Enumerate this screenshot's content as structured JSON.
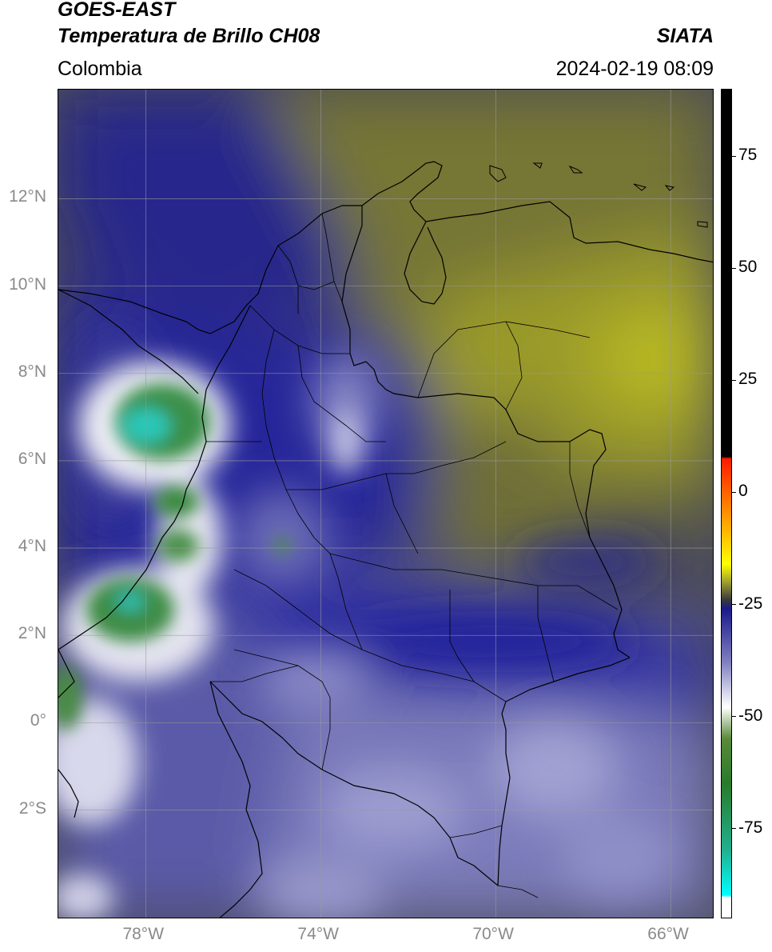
{
  "header": {
    "satellite": "GOES-EAST",
    "product": "Temperatura de Brillo CH08",
    "region": "Colombia",
    "agency": "SIATA",
    "datetime": "2024-02-19 08:09"
  },
  "map": {
    "lat_labels": [
      "12°N",
      "10°N",
      "8°N",
      "6°N",
      "4°N",
      "2°N",
      "0°",
      "2°S"
    ],
    "lon_labels": [
      "78°W",
      "74°W",
      "70°W",
      "66°W"
    ],
    "lat_range": [
      -4.5,
      14.5
    ],
    "lon_range": [
      -80,
      -65
    ],
    "gridlines": true,
    "borders": "country and department boundaries",
    "colors": {
      "cold_cloud": "#2a8a3a",
      "cyan": "#2ad6c6",
      "white": "#f4f4f8",
      "deep_blue": "#1e1e8c",
      "mid_blue": "#5a5aa8",
      "lavender": "#9a9ac8",
      "gray": "#4e4e58",
      "olive": "#8a8a30",
      "yellow": "#c4c420"
    }
  },
  "colorbar": {
    "tick_labels": [
      "75",
      "50",
      "25",
      "0",
      "-25",
      "-50",
      "-75"
    ],
    "ticks": [
      75,
      50,
      25,
      0,
      -25,
      -50,
      -75
    ],
    "range": [
      -95,
      90
    ],
    "stops": [
      {
        "value": 90,
        "color": "#000000"
      },
      {
        "value": 8,
        "color": "#000000"
      },
      {
        "value": 7.5,
        "color": "#ff1a00"
      },
      {
        "value": -8,
        "color": "#ffb000"
      },
      {
        "value": -16,
        "color": "#ffff00"
      },
      {
        "value": -20,
        "color": "#a0a030"
      },
      {
        "value": -24,
        "color": "#3a3a3a"
      },
      {
        "value": -26,
        "color": "#1a1a8a"
      },
      {
        "value": -38,
        "color": "#8080c0"
      },
      {
        "value": -48,
        "color": "#ffffff"
      },
      {
        "value": -55,
        "color": "#5a8a3a"
      },
      {
        "value": -65,
        "color": "#2a7a2a"
      },
      {
        "value": -80,
        "color": "#20b090"
      },
      {
        "value": -90,
        "color": "#00ffff"
      },
      {
        "value": -90.5,
        "color": "#ffffff"
      },
      {
        "value": -95,
        "color": "#ffffff"
      }
    ]
  }
}
